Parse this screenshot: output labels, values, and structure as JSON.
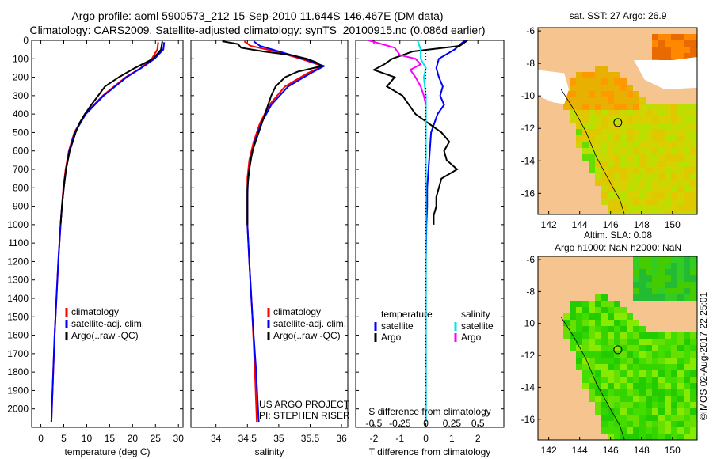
{
  "header": {
    "title_line1": "Argo profile: aoml 5900573_212 15-Sep-2010 11.644S 146.467E (DM data)",
    "title_line2": "Climatology: CARS2009. Satellite-adjusted climatology: synTS_20100915.nc (0.086d earlier)"
  },
  "colors": {
    "climatology": "#ff0000",
    "satellite": "#0000ff",
    "argo": "#000000",
    "sal_sat": "#00e5ee",
    "sal_argo": "#ff00ff",
    "land": "#f5c48f",
    "sea": "#ffffff"
  },
  "chart_data": [
    {
      "type": "line",
      "xlabel": "temperature (deg C)",
      "ylabel": "",
      "xlim": [
        -2,
        31
      ],
      "ylim": [
        2100,
        0
      ],
      "xticks": [
        0,
        5,
        10,
        15,
        20,
        25,
        30
      ],
      "yticks": [
        0,
        100,
        200,
        300,
        400,
        500,
        600,
        700,
        800,
        900,
        1000,
        1100,
        1200,
        1300,
        1400,
        1500,
        1600,
        1700,
        1800,
        1900,
        2000
      ],
      "legend": [
        "climatology",
        "satellite-adj. clim.",
        "Argo(..raw -QC)"
      ],
      "series": [
        {
          "name": "climatology",
          "depth": [
            10,
            50,
            100,
            150,
            200,
            300,
            400,
            500,
            600,
            700,
            800,
            900,
            1000,
            1200,
            1400,
            1600,
            1800,
            2000,
            2070
          ],
          "values": [
            25.6,
            25.4,
            24.2,
            21.8,
            18.5,
            13.5,
            9.6,
            7.3,
            6.1,
            5.4,
            4.9,
            4.6,
            4.3,
            3.8,
            3.4,
            3.0,
            2.7,
            2.4,
            2.3
          ]
        },
        {
          "name": "satellite-adj. clim.",
          "depth": [
            10,
            50,
            100,
            150,
            200,
            300,
            400,
            500,
            600,
            700,
            800,
            900,
            1000,
            1200,
            1400,
            1600,
            1800,
            2000,
            2070
          ],
          "values": [
            26.9,
            26.7,
            24.8,
            21.9,
            18.7,
            13.7,
            9.8,
            7.4,
            6.2,
            5.5,
            5.0,
            4.6,
            4.3,
            3.8,
            3.4,
            3.0,
            2.7,
            2.4,
            2.3
          ]
        },
        {
          "name": "Argo(..raw -QC)",
          "depth": [
            5,
            50,
            100,
            150,
            200,
            250,
            300,
            350,
            400,
            450,
            500,
            600,
            700,
            800,
            900,
            1000
          ],
          "values": [
            26.5,
            26.2,
            24.5,
            20.5,
            17.0,
            14.0,
            12.5,
            11.0,
            9.6,
            8.4,
            7.6,
            6.3,
            5.5,
            5.0,
            4.6,
            4.3
          ]
        }
      ]
    },
    {
      "type": "line",
      "xlabel": "salinity",
      "ylabel": "",
      "xlim": [
        33.6,
        36.1
      ],
      "ylim": [
        2100,
        0
      ],
      "xticks": [
        34,
        34.5,
        35,
        35.5,
        36
      ],
      "legend": [
        "climatology",
        "satellite-adj. clim.",
        "Argo(..raw -QC)"
      ],
      "annotations": [
        "US ARGO PROJECT",
        "PI: STEPHEN RISER"
      ],
      "series": [
        {
          "name": "climatology",
          "depth": [
            5,
            30,
            60,
            100,
            140,
            180,
            250,
            350,
            450,
            550,
            650,
            750,
            850,
            1000,
            1200,
            1500,
            1800,
            2070
          ],
          "values": [
            34.45,
            34.55,
            34.95,
            35.35,
            35.7,
            35.45,
            35.1,
            34.85,
            34.7,
            34.6,
            34.53,
            34.5,
            34.5,
            34.5,
            34.53,
            34.58,
            34.62,
            34.65
          ]
        },
        {
          "name": "satellite-adj. clim.",
          "depth": [
            5,
            30,
            60,
            100,
            140,
            180,
            250,
            350,
            450,
            550,
            650,
            750,
            850,
            1000,
            1200,
            1500,
            1800,
            2070
          ],
          "values": [
            34.6,
            34.7,
            35.0,
            35.4,
            35.72,
            35.5,
            35.15,
            34.88,
            34.72,
            34.62,
            34.55,
            34.51,
            34.5,
            34.5,
            34.53,
            34.58,
            34.64,
            34.68
          ]
        },
        {
          "name": "Argo(..raw -QC)",
          "depth": [
            5,
            20,
            40,
            60,
            80,
            100,
            120,
            140,
            170,
            200,
            250,
            300,
            400,
            500,
            600,
            700,
            800,
            900,
            1000
          ],
          "values": [
            34.1,
            34.35,
            34.4,
            34.75,
            35.2,
            35.45,
            35.6,
            35.68,
            35.3,
            35.1,
            34.95,
            34.88,
            34.78,
            34.68,
            34.58,
            34.53,
            34.5,
            34.5,
            34.5
          ]
        }
      ]
    },
    {
      "type": "line",
      "xlabel": "T difference from climatology",
      "x2label": "S difference from climatology",
      "xlim": [
        -2.7,
        3.0
      ],
      "ylim": [
        2100,
        0
      ],
      "xticks": [
        -2,
        -1,
        0,
        1,
        2
      ],
      "x2ticks": [
        -0.5,
        -0.25,
        0,
        0.25,
        0.5
      ],
      "x2tick_labels": [
        "-0.5",
        "-0.25",
        "0",
        "0.25",
        "0.5"
      ],
      "legend_headers": [
        "temperature",
        "salinity"
      ],
      "legend": [
        "satellite",
        "Argo",
        "satellite",
        "Argo"
      ],
      "series": [
        {
          "name": "temperature satellite",
          "depth": [
            0,
            50,
            100,
            150,
            200,
            250,
            300,
            350,
            400,
            500,
            600,
            700,
            800,
            900,
            1000,
            1200,
            1500,
            2000,
            2070
          ],
          "values": [
            1.5,
            1.1,
            0.5,
            0.4,
            0.5,
            0.65,
            0.55,
            0.7,
            0.45,
            0.2,
            0.15,
            0.1,
            0.05,
            0.05,
            0.02,
            0.0,
            0.0,
            0.0,
            0.0
          ]
        },
        {
          "name": "temperature Argo",
          "depth": [
            0,
            30,
            60,
            100,
            130,
            160,
            200,
            250,
            300,
            400,
            450,
            500,
            550,
            600,
            650,
            700,
            750,
            800,
            850,
            900,
            950,
            1000
          ],
          "values": [
            1.6,
            1.3,
            -0.5,
            -1.3,
            -1.6,
            -2.0,
            -1.2,
            -1.5,
            -0.9,
            -0.4,
            0.1,
            0.6,
            0.9,
            0.7,
            0.8,
            1.2,
            0.6,
            0.5,
            0.4,
            0.4,
            0.3,
            0.3
          ]
        },
        {
          "name": "salinity satellite",
          "depth": [
            0,
            50,
            100,
            150,
            200,
            300,
            400,
            500,
            600,
            800,
            1000,
            1200,
            1500,
            2000,
            2070
          ],
          "values": [
            -0.08,
            -0.05,
            -0.05,
            0.0,
            -0.02,
            0.0,
            0.0,
            0.0,
            0.0,
            0.0,
            0.0,
            0.0,
            0.0,
            0.0,
            0.0
          ]
        },
        {
          "name": "salinity Argo",
          "depth": [
            0,
            40,
            80,
            100,
            130,
            160,
            200,
            250,
            300,
            350
          ],
          "values": [
            -0.55,
            -0.3,
            -0.25,
            -0.1,
            -0.05,
            -0.15,
            -0.1,
            -0.05,
            -0.02,
            0.0
          ]
        }
      ]
    },
    {
      "type": "heatmap",
      "title": "sat. SST: 27 Argo: 26.9",
      "xlim": [
        141.3,
        151.6
      ],
      "ylim": [
        -17.3,
        -5.8
      ],
      "xticks": [
        142,
        144,
        146,
        148,
        150
      ],
      "yticks": [
        -6,
        -8,
        -10,
        -12,
        -14,
        -16
      ],
      "marker": {
        "lon": 146.467,
        "lat": -11.644
      }
    },
    {
      "type": "heatmap",
      "title_line1": "Altim. SLA: 0.08",
      "title_line2": "Argo h1000: NaN h2000: NaN",
      "xlim": [
        141.3,
        151.6
      ],
      "ylim": [
        -17.3,
        -5.8
      ],
      "xticks": [
        142,
        144,
        146,
        148,
        150
      ],
      "yticks": [
        -6,
        -8,
        -10,
        -12,
        -14,
        -16
      ],
      "marker": {
        "lon": 146.467,
        "lat": -11.644
      }
    }
  ],
  "footer": {
    "stamp": "©IMOS 02-Aug-2017 22:25:01"
  }
}
